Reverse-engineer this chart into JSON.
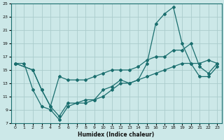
{
  "xlabel": "Humidex (Indice chaleur)",
  "bg_color": "#cce8e8",
  "grid_color": "#aacccc",
  "line_color": "#1a6e6e",
  "xlim": [
    -0.5,
    23.5
  ],
  "ylim": [
    7,
    25
  ],
  "xticks": [
    0,
    1,
    2,
    3,
    4,
    5,
    6,
    7,
    8,
    9,
    10,
    11,
    12,
    13,
    14,
    15,
    16,
    17,
    18,
    19,
    20,
    21,
    22,
    23
  ],
  "yticks": [
    7,
    9,
    11,
    13,
    15,
    17,
    19,
    21,
    23,
    25
  ],
  "line1_x": [
    0,
    1,
    2,
    3,
    4,
    5,
    6,
    7,
    8,
    9,
    10,
    11,
    12,
    13,
    14,
    15,
    16,
    17,
    18,
    19,
    20,
    21,
    22,
    23
  ],
  "line1_y": [
    16,
    16,
    12,
    9.5,
    9,
    7.5,
    9.5,
    10,
    10,
    10.5,
    12,
    12.5,
    13.5,
    13,
    13.5,
    16,
    22,
    23.5,
    24.5,
    19,
    16,
    16,
    16.5,
    16
  ],
  "line2_x": [
    0,
    2,
    3,
    4,
    5,
    6,
    7,
    8,
    9,
    10,
    11,
    12,
    13,
    14,
    15,
    16,
    17,
    18,
    19,
    20,
    21,
    22,
    23
  ],
  "line2_y": [
    16,
    15,
    12,
    9.5,
    14,
    13.5,
    13.5,
    13.5,
    14,
    14.5,
    15,
    15,
    15,
    15.5,
    16.5,
    17,
    17,
    18,
    18,
    19,
    15.5,
    14.5,
    16
  ],
  "line3_x": [
    0,
    2,
    3,
    4,
    5,
    6,
    7,
    8,
    9,
    10,
    11,
    12,
    13,
    14,
    15,
    16,
    17,
    18,
    19,
    20,
    21,
    22,
    23
  ],
  "line3_y": [
    16,
    15,
    12,
    9.5,
    8,
    10,
    10,
    10.5,
    10.5,
    11,
    12,
    13,
    13,
    13.5,
    14,
    14.5,
    15,
    15.5,
    16,
    16,
    14,
    14,
    15.5
  ]
}
